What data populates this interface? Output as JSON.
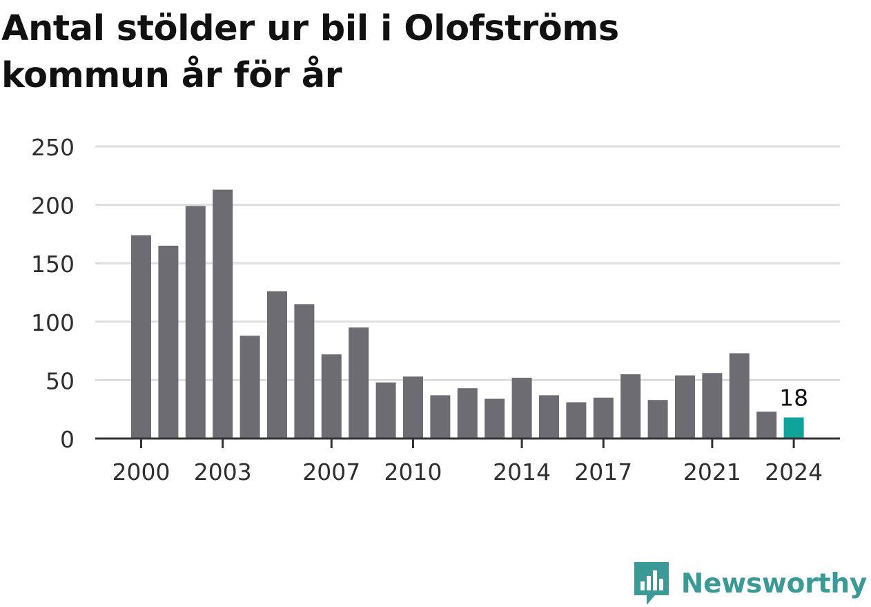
{
  "title": "Antal stölder ur bil i Olofströms kommun år för år",
  "brand": {
    "name": "Newsworthy",
    "icon": "newsworthy-logo-icon",
    "color": "#3b9a95"
  },
  "colors": {
    "bar": "#6d6c72",
    "highlight": "#0fa399",
    "grid": "#dedede",
    "axis": "#333333"
  },
  "chart_data": {
    "type": "bar",
    "title": "Antal stölder ur bil i Olofströms kommun år för år",
    "xlabel": "",
    "ylabel": "",
    "categories": [
      "2000",
      "2001",
      "2002",
      "2003",
      "2004",
      "2005",
      "2006",
      "2007",
      "2008",
      "2009",
      "2010",
      "2011",
      "2012",
      "2013",
      "2014",
      "2015",
      "2016",
      "2017",
      "2018",
      "2019",
      "2020",
      "2021",
      "2022",
      "2023",
      "2024"
    ],
    "values": [
      174,
      165,
      199,
      213,
      88,
      126,
      115,
      72,
      95,
      48,
      53,
      37,
      43,
      34,
      52,
      37,
      31,
      35,
      55,
      33,
      54,
      56,
      73,
      23,
      18
    ],
    "x_tick_labels": [
      "2000",
      "2003",
      "2007",
      "2010",
      "2014",
      "2017",
      "2021",
      "2024"
    ],
    "y_ticks": [
      0,
      50,
      100,
      150,
      200,
      250
    ],
    "ylim": [
      0,
      250
    ],
    "grid": true,
    "highlight": {
      "category": "2024",
      "label": "18"
    }
  }
}
